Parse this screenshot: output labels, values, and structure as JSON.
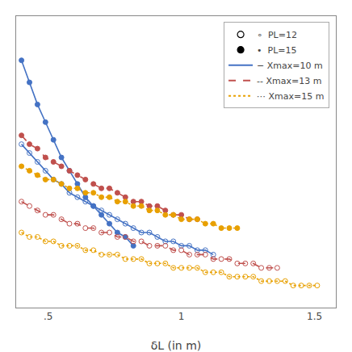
{
  "chart_data": {
    "type": "line",
    "x_label": "δL (in m)",
    "xlim": [
      0.38,
      1.58
    ],
    "xticks": [
      {
        "value": 0.5,
        "label": ".5"
      },
      1,
      1.5
    ],
    "ylim": [
      0.26,
      0.92
    ],
    "tick_labels": "x",
    "grid": false,
    "legend": "upper right",
    "series": [
      {
        "color": "#4472C4",
        "line_style": "solid",
        "marker": "circle",
        "x": [
          0.4,
          0.43,
          0.46,
          0.49,
          0.52,
          0.55,
          0.58,
          0.61,
          0.64,
          0.67,
          0.7,
          0.73,
          0.76,
          0.79,
          0.82
        ],
        "values": [
          0.82,
          0.77,
          0.72,
          0.68,
          0.64,
          0.6,
          0.57,
          0.54,
          0.51,
          0.49,
          0.47,
          0.45,
          0.43,
          0.42,
          0.4
        ]
      },
      {
        "color": "#4472C4",
        "line_style": "solid",
        "marker": "circle-open",
        "x": [
          0.4,
          0.43,
          0.46,
          0.49,
          0.52,
          0.55,
          0.58,
          0.61,
          0.64,
          0.67,
          0.7,
          0.73,
          0.76,
          0.79,
          0.82,
          0.85,
          0.88,
          0.91,
          0.94,
          0.97,
          1.0,
          1.03,
          1.06,
          1.09,
          1.12
        ],
        "values": [
          0.63,
          0.61,
          0.59,
          0.57,
          0.55,
          0.54,
          0.52,
          0.51,
          0.5,
          0.49,
          0.48,
          0.47,
          0.46,
          0.45,
          0.44,
          0.43,
          0.43,
          0.42,
          0.41,
          0.41,
          0.4,
          0.4,
          0.39,
          0.39,
          0.38
        ]
      },
      {
        "color": "#C0504D",
        "line_style": "dash",
        "marker": "circle",
        "x": [
          0.4,
          0.43,
          0.46,
          0.49,
          0.52,
          0.55,
          0.58,
          0.61,
          0.64,
          0.67,
          0.7,
          0.73,
          0.76,
          0.79,
          0.82,
          0.85,
          0.88,
          0.91,
          0.94,
          0.97,
          1.0,
          1.03,
          1.06
        ],
        "values": [
          0.65,
          0.63,
          0.62,
          0.6,
          0.59,
          0.58,
          0.57,
          0.56,
          0.55,
          0.54,
          0.53,
          0.53,
          0.52,
          0.51,
          0.5,
          0.5,
          0.49,
          0.49,
          0.48,
          0.47,
          0.47,
          0.46,
          0.46
        ]
      },
      {
        "color": "#C0504D",
        "line_style": "dash",
        "marker": "circle-open",
        "x": [
          0.4,
          0.43,
          0.46,
          0.49,
          0.52,
          0.55,
          0.58,
          0.61,
          0.64,
          0.67,
          0.7,
          0.73,
          0.76,
          0.79,
          0.82,
          0.85,
          0.88,
          0.91,
          0.94,
          0.97,
          1.0,
          1.03,
          1.06,
          1.09,
          1.12,
          1.15,
          1.18,
          1.21,
          1.24,
          1.27,
          1.3,
          1.33,
          1.36
        ],
        "values": [
          0.5,
          0.49,
          0.48,
          0.47,
          0.47,
          0.46,
          0.45,
          0.45,
          0.44,
          0.44,
          0.43,
          0.43,
          0.42,
          0.42,
          0.41,
          0.41,
          0.4,
          0.4,
          0.4,
          0.39,
          0.39,
          0.38,
          0.38,
          0.38,
          0.37,
          0.37,
          0.37,
          0.36,
          0.36,
          0.36,
          0.35,
          0.35,
          0.35
        ]
      },
      {
        "color": "#E8A000",
        "line_style": "dot",
        "marker": "circle",
        "x": [
          0.4,
          0.43,
          0.46,
          0.49,
          0.52,
          0.55,
          0.58,
          0.61,
          0.64,
          0.67,
          0.7,
          0.73,
          0.76,
          0.79,
          0.82,
          0.85,
          0.88,
          0.91,
          0.94,
          0.97,
          1.0,
          1.03,
          1.06,
          1.09,
          1.12,
          1.15,
          1.18,
          1.21
        ],
        "values": [
          0.58,
          0.57,
          0.56,
          0.55,
          0.55,
          0.54,
          0.53,
          0.53,
          0.52,
          0.52,
          0.51,
          0.51,
          0.5,
          0.5,
          0.49,
          0.49,
          0.48,
          0.48,
          0.47,
          0.47,
          0.46,
          0.46,
          0.46,
          0.45,
          0.45,
          0.44,
          0.44,
          0.44
        ]
      },
      {
        "color": "#E8A000",
        "line_style": "dot",
        "marker": "circle-open",
        "x": [
          0.4,
          0.43,
          0.46,
          0.49,
          0.52,
          0.55,
          0.58,
          0.61,
          0.64,
          0.67,
          0.7,
          0.73,
          0.76,
          0.79,
          0.82,
          0.85,
          0.88,
          0.91,
          0.94,
          0.97,
          1.0,
          1.03,
          1.06,
          1.09,
          1.12,
          1.15,
          1.18,
          1.21,
          1.24,
          1.27,
          1.3,
          1.33,
          1.36,
          1.39,
          1.42,
          1.45,
          1.48,
          1.51
        ],
        "values": [
          0.43,
          0.42,
          0.42,
          0.41,
          0.41,
          0.4,
          0.4,
          0.4,
          0.39,
          0.39,
          0.38,
          0.38,
          0.38,
          0.37,
          0.37,
          0.37,
          0.36,
          0.36,
          0.36,
          0.35,
          0.35,
          0.35,
          0.35,
          0.34,
          0.34,
          0.34,
          0.33,
          0.33,
          0.33,
          0.33,
          0.32,
          0.32,
          0.32,
          0.32,
          0.31,
          0.31,
          0.31,
          0.31
        ]
      }
    ],
    "legend_entries": [
      {
        "name": "∘  PL=12",
        "color": "#000000",
        "marker": "circle-open"
      },
      {
        "name": "•  PL=15",
        "color": "#000000",
        "marker": "circle"
      },
      {
        "name": "− Xmax=10 m",
        "color": "#4472C4",
        "line_style": "solid"
      },
      {
        "name": "-- Xmax=13 m",
        "color": "#C0504D",
        "line_style": "dash"
      },
      {
        "name": "⋯ Xmax=15 m",
        "color": "#E8A000",
        "line_style": "dot"
      }
    ]
  }
}
